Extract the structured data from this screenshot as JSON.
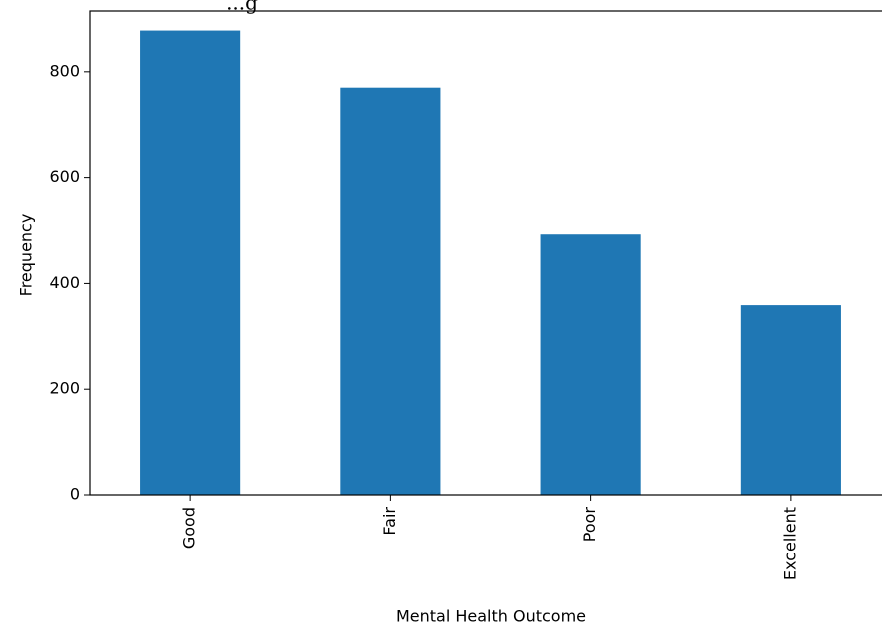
{
  "chart_data": {
    "type": "bar",
    "title": "...g",
    "xlabel": "Mental Health Outcome",
    "ylabel": "Frequency",
    "categories": [
      "Good",
      "Fair",
      "Poor",
      "Excellent"
    ],
    "values": [
      878,
      770,
      493,
      359
    ],
    "ylim": [
      0,
      915
    ],
    "yticks": [
      0,
      200,
      400,
      600,
      800
    ],
    "ytick_labels": [
      "0",
      "200",
      "400",
      "600",
      "800"
    ],
    "bar_color": "#1f77b4",
    "grid": false,
    "legend": "none"
  }
}
